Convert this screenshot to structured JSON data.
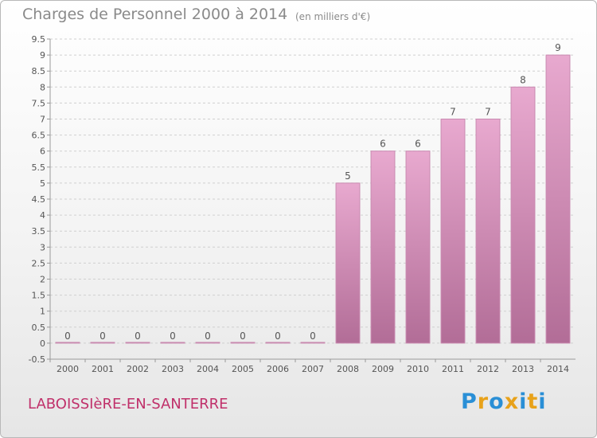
{
  "header": {
    "title": "Charges de Personnel 2000 à 2014",
    "subtitle": "(en milliers d'€)"
  },
  "footer": {
    "commune": "LABOISSIèRE-EN-SANTERRE",
    "brand": "Proxiti",
    "brand_colors": [
      "#2a8fd6",
      "#e8a21a",
      "#2a8fd6",
      "#e8a21a",
      "#2a8fd6",
      "#e8a21a",
      "#2a8fd6"
    ]
  },
  "chart_data": {
    "type": "bar",
    "title": "Charges de Personnel 2000 à 2014",
    "subtitle": "(en milliers d'€)",
    "categories": [
      "2000",
      "2001",
      "2002",
      "2003",
      "2004",
      "2005",
      "2006",
      "2007",
      "2008",
      "2009",
      "2010",
      "2011",
      "2012",
      "2013",
      "2014"
    ],
    "values": [
      0,
      0,
      0,
      0,
      0,
      0,
      0,
      0,
      5,
      6,
      6,
      7,
      7,
      8,
      9
    ],
    "data_labels": [
      "0",
      "0",
      "0",
      "0",
      "0",
      "0",
      "0",
      "0",
      "5",
      "6",
      "6",
      "7",
      "7",
      "8",
      "9"
    ],
    "y_ticks": [
      "-0.5",
      "0",
      "0.5",
      "1",
      "1.5",
      "2",
      "2.5",
      "3",
      "3.5",
      "4",
      "4.5",
      "5",
      "5.5",
      "6",
      "6.5",
      "7",
      "7.5",
      "8",
      "8.5",
      "9",
      "9.5"
    ],
    "ylim": [
      -0.5,
      9.5
    ],
    "xlabel": "",
    "ylabel": "",
    "grid": true,
    "colors": {
      "bar_top": "#e8a9cf",
      "bar_bottom": "#b26d97",
      "bar_stroke": "#c98bb1",
      "grid": "#d0d0d0",
      "axis": "#9a9a9a",
      "text": "#555555"
    }
  }
}
